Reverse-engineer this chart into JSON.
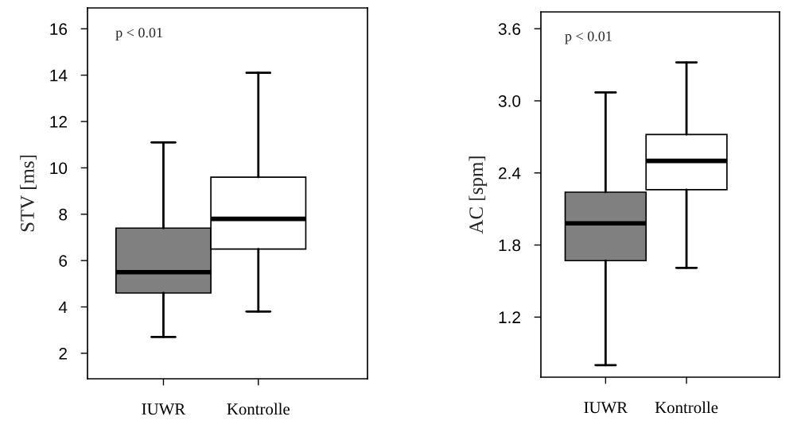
{
  "chart_data": [
    {
      "type": "box",
      "categories": [
        "IUWR",
        "Kontrolle"
      ],
      "ylabel": "STV [ms]",
      "ylim": [
        0.9,
        16.9
      ],
      "yticks": [
        2,
        4,
        6,
        8,
        10,
        12,
        14,
        16
      ],
      "colors": [
        "#808080",
        "#ffffff"
      ],
      "boxes": [
        {
          "low": 2.7,
          "q1": 4.6,
          "median": 5.5,
          "q3": 7.4,
          "high": 11.1
        },
        {
          "low": 3.8,
          "q1": 6.5,
          "median": 7.8,
          "q3": 9.6,
          "high": 14.1
        }
      ],
      "annotations": [
        "p < 0.01"
      ],
      "grid": false,
      "legend": false
    },
    {
      "type": "box",
      "categories": [
        "IUWR",
        "Kontrolle"
      ],
      "ylabel": "AC [spm]",
      "ylim": [
        0.7,
        3.74
      ],
      "yticks": [
        1.2,
        1.8,
        2.4,
        {
          "value": 3,
          "label": "3.0"
        },
        3.6
      ],
      "colors": [
        "#808080",
        "#ffffff"
      ],
      "boxes": [
        {
          "low": 0.8,
          "q1": 1.67,
          "median": 1.98,
          "q3": 2.24,
          "high": 3.07
        },
        {
          "low": 1.61,
          "q1": 2.26,
          "median": 2.5,
          "q3": 2.72,
          "high": 3.32
        }
      ],
      "annotations": [
        "p < 0.01"
      ],
      "grid": false,
      "legend": false
    }
  ]
}
